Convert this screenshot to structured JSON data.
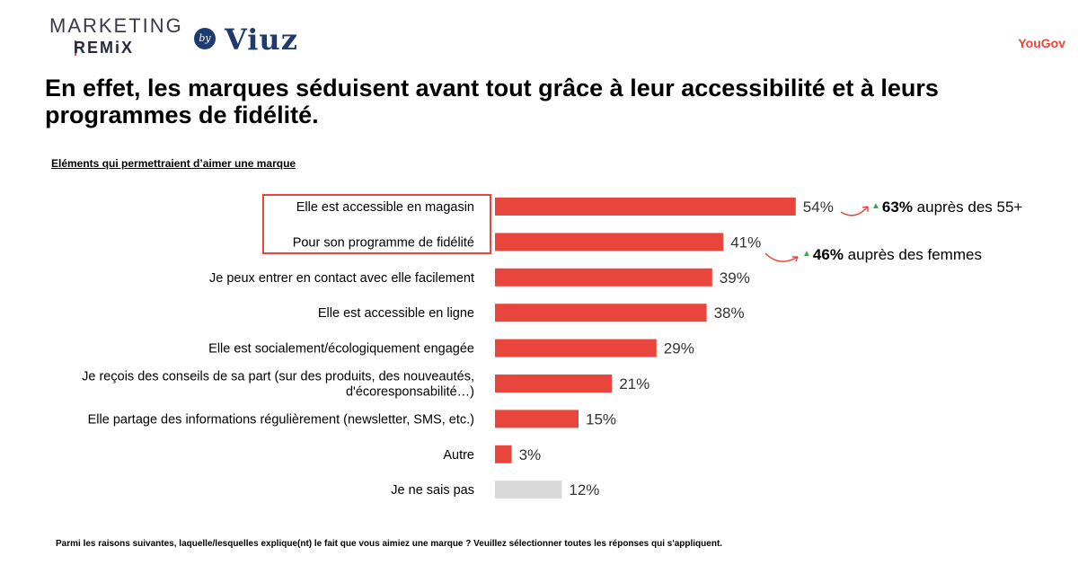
{
  "header": {
    "logo_marketing": "MARKETING",
    "logo_remix": "REMiX",
    "logo_by": "by",
    "logo_viuz": "Viuz",
    "brand": "YouGov",
    "headline": "En effet, les marques séduisent avant tout grâce à leur accessibilité et à leurs programmes de fidélité."
  },
  "colors": {
    "accent": "#e8453c",
    "muted_bar": "#d9d9d9",
    "up_arrow": "#3aa84a"
  },
  "chart_data": {
    "type": "bar",
    "orientation": "horizontal",
    "title": "Eléments qui permettraient d’aimer une marque",
    "categories": [
      "Elle est accessible en magasin",
      "Pour son programme de fidélité",
      "Je peux entrer en contact avec elle facilement",
      "Elle est accessible en ligne",
      "Elle est socialement/écologiquement engagée",
      "Je reçois des conseils de sa part (sur des produits, des nouveautés, d'écoresponsabilité…)",
      "Elle partage des informations régulièrement (newsletter, SMS, etc.)",
      "Autre",
      "Je ne sais pas"
    ],
    "category_lines": [
      [
        "Elle est accessible en magasin"
      ],
      [
        "Pour son programme de fidélité"
      ],
      [
        "Je peux entrer en contact avec elle facilement"
      ],
      [
        "Elle est accessible en ligne"
      ],
      [
        "Elle est socialement/écologiquement engagée"
      ],
      [
        "Je reçois des conseils de sa part (sur des produits, des nouveautés,",
        "d'écoresponsabilité…)"
      ],
      [
        "Elle partage des informations régulièrement (newsletter, SMS, etc.)"
      ],
      [
        "Autre"
      ],
      [
        "Je ne sais pas"
      ]
    ],
    "values": [
      54,
      41,
      39,
      38,
      29,
      21,
      15,
      3,
      12
    ],
    "value_labels": [
      "54%",
      "41%",
      "39%",
      "38%",
      "29%",
      "21%",
      "15%",
      "3%",
      "12%"
    ],
    "highlight_muted": [
      false,
      false,
      false,
      false,
      false,
      false,
      false,
      false,
      true
    ],
    "xlim": [
      0,
      100
    ],
    "unit": "%"
  },
  "callouts": [
    {
      "value": "63%",
      "text": "auprès des 55+"
    },
    {
      "value": "46%",
      "text": "auprès des femmes"
    }
  ],
  "footnote": "Parmi les raisons suivantes, laquelle/lesquelles explique(nt) le fait que vous aimiez une marque ? Veuillez sélectionner toutes les réponses qui s'appliquent."
}
